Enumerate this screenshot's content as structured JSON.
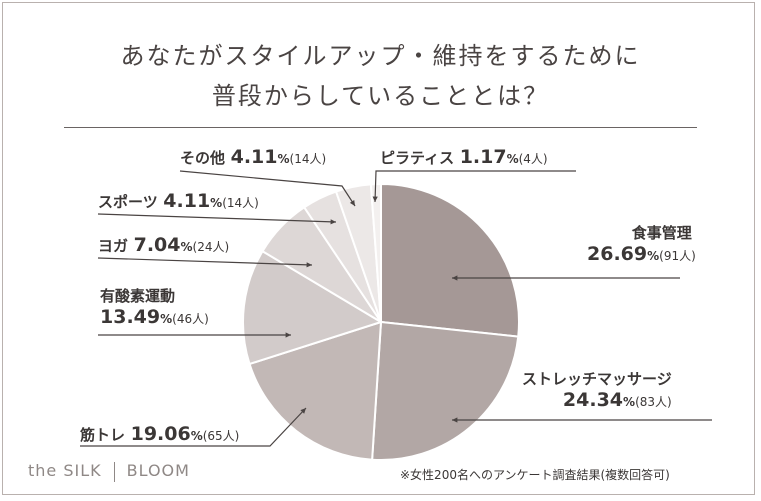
{
  "title_line1": "あなたがスタイルアップ・維持をするために",
  "title_line2": "普段からしていることとは？",
  "chart_data": {
    "type": "pie",
    "title": "あなたがスタイルアップ・維持をするために普段からしていることとは？",
    "unit_percent": "%",
    "slices": [
      {
        "label": "食事管理",
        "percent": "26.69",
        "count_text": "(91人)",
        "value": 26.69,
        "color": "#a59896"
      },
      {
        "label": "ストレッチマッサージ",
        "percent": "24.34",
        "count_text": "(83人)",
        "value": 24.34,
        "color": "#b2a7a5"
      },
      {
        "label": "筋トレ",
        "percent": "19.06",
        "count_text": "(65人)",
        "value": 19.06,
        "color": "#c2b8b6"
      },
      {
        "label": "有酸素運動",
        "percent": "13.49",
        "count_text": "(46人)",
        "value": 13.49,
        "color": "#d2cbca"
      },
      {
        "label": "ヨガ",
        "percent": "7.04",
        "count_text": "(24人)",
        "value": 7.04,
        "color": "#ddd7d6"
      },
      {
        "label": "スポーツ",
        "percent": "4.11",
        "count_text": "(14人)",
        "value": 4.11,
        "color": "#e6e1e0"
      },
      {
        "label": "その他",
        "percent": "4.11",
        "count_text": "(14人)",
        "value": 4.11,
        "color": "#ece8e7"
      },
      {
        "label": "ピラティス",
        "percent": "1.17",
        "count_text": "(4人)",
        "value": 1.17,
        "color": "#f3f0ef"
      }
    ]
  },
  "brand": {
    "left": "the SILK",
    "right": "BLOOM"
  },
  "footnote": "※女性200名へのアンケート調査結果(複数回答可)"
}
